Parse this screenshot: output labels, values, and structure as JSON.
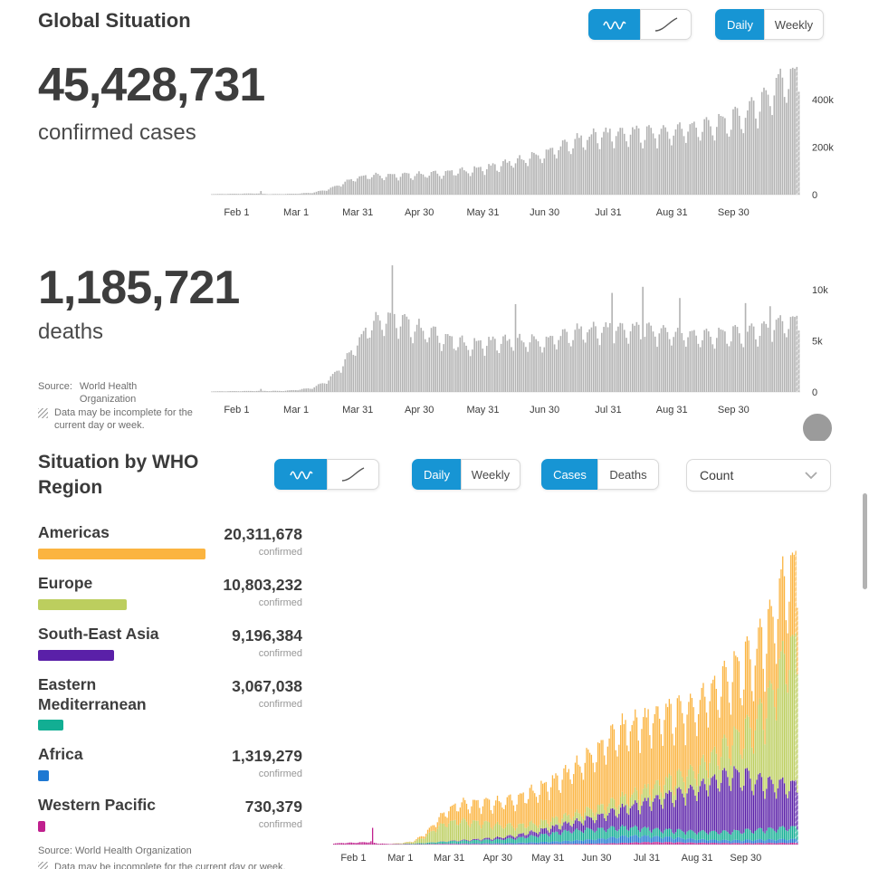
{
  "accent_blue": "#1795d4",
  "global": {
    "title": "Global Situation",
    "chart_type_toggle": {
      "options": [
        "daily-bars",
        "cumulative-curve"
      ],
      "active": "daily-bars"
    },
    "period_toggle": {
      "options": [
        "Daily",
        "Weekly"
      ],
      "active": "Daily"
    },
    "cases": {
      "value": "45,428,731",
      "label": "confirmed cases"
    },
    "deaths": {
      "value": "1,185,721",
      "label": "deaths"
    },
    "source_label": "Source:",
    "source_name": "World Health Organization",
    "disclaimer": "Data may be incomplete for the current day or week."
  },
  "regions_section": {
    "title": "Situation by WHO Region",
    "chart_type_toggle": {
      "options": [
        "daily-bars",
        "cumulative-curve"
      ],
      "active": "daily-bars"
    },
    "period_toggle": {
      "options": [
        "Daily",
        "Weekly"
      ],
      "active": "Daily"
    },
    "metric_toggle": {
      "options": [
        "Cases",
        "Deaths"
      ],
      "active": "Cases"
    },
    "dropdown_value": "Count",
    "unit_label": "confirmed",
    "source_line": "Source: World Health Organization",
    "disclaimer": "Data may be incomplete for the current day or week.",
    "regions": [
      {
        "name": "Americas",
        "value": "20,311,678",
        "count": 20311678,
        "color": "#fbb440"
      },
      {
        "name": "Europe",
        "value": "10,803,232",
        "count": 10803232,
        "color": "#bcce5e"
      },
      {
        "name": "South-East Asia",
        "value": "9,196,384",
        "count": 9196384,
        "color": "#5a20a8"
      },
      {
        "name": "Eastern Mediterranean",
        "value": "3,067,038",
        "count": 3067038,
        "color": "#12ae93"
      },
      {
        "name": "Africa",
        "value": "1,319,279",
        "count": 1319279,
        "color": "#1e78d2"
      },
      {
        "name": "Western Pacific",
        "value": "730,379",
        "count": 730379,
        "color": "#c0208e"
      }
    ]
  },
  "chart_data": [
    {
      "type": "bar",
      "name": "global-daily-confirmed-cases",
      "bar_color": "#b3b3b3",
      "ylim": [
        0,
        560000
      ],
      "y_ticks": [
        {
          "label": "0",
          "value": 0
        },
        {
          "label": "200k",
          "value": 200000
        },
        {
          "label": "400k",
          "value": 400000
        }
      ],
      "x_ticks": [
        {
          "label": "Feb 1",
          "day": 12
        },
        {
          "label": "Mar 1",
          "day": 41
        },
        {
          "label": "Mar 31",
          "day": 71
        },
        {
          "label": "Apr 30",
          "day": 101
        },
        {
          "label": "May 31",
          "day": 132
        },
        {
          "label": "Jun 30",
          "day": 162
        },
        {
          "label": "Jul 31",
          "day": 193
        },
        {
          "label": "Aug 31",
          "day": 224
        },
        {
          "label": "Sep 30",
          "day": 254
        }
      ],
      "weekly_avg": [
        2000,
        3000,
        3500,
        5000,
        2000,
        2500,
        4000,
        8000,
        20000,
        45000,
        70000,
        80000,
        80000,
        78000,
        82000,
        85000,
        88000,
        95000,
        100000,
        110000,
        120000,
        135000,
        150000,
        165000,
        190000,
        210000,
        230000,
        250000,
        250000,
        255000,
        250000,
        255000,
        260000,
        270000,
        280000,
        290000,
        300000,
        330000,
        370000,
        430000,
        490000
      ],
      "spikes": {
        "24": 15000
      },
      "week_pattern": [
        0.8,
        0.95,
        1.1,
        1.12,
        1.1,
        1.05,
        0.88
      ],
      "incomplete_days": 2
    },
    {
      "type": "bar",
      "name": "global-daily-deaths",
      "bar_color": "#b3b3b3",
      "ylim": [
        0,
        12500
      ],
      "y_ticks": [
        {
          "label": "0",
          "value": 0
        },
        {
          "label": "5k",
          "value": 5000
        },
        {
          "label": "10k",
          "value": 10000
        }
      ],
      "x_ticks": [
        {
          "label": "Feb 1",
          "day": 12
        },
        {
          "label": "Mar 1",
          "day": 41
        },
        {
          "label": "Mar 31",
          "day": 71
        },
        {
          "label": "Apr 30",
          "day": 101
        },
        {
          "label": "May 31",
          "day": 132
        },
        {
          "label": "Jun 30",
          "day": 162
        },
        {
          "label": "Jul 31",
          "day": 193
        },
        {
          "label": "Aug 31",
          "day": 224
        },
        {
          "label": "Sep 30",
          "day": 254
        }
      ],
      "weekly_avg": [
        50,
        70,
        80,
        100,
        100,
        100,
        200,
        400,
        1000,
        2500,
        4500,
        6500,
        7200,
        6800,
        6300,
        5800,
        5300,
        4800,
        4500,
        4700,
        4800,
        4800,
        4900,
        4800,
        5200,
        5500,
        5900,
        6000,
        6100,
        6000,
        5900,
        5800,
        5700,
        5500,
        5400,
        5400,
        5500,
        5600,
        5900,
        6300,
        6800
      ],
      "spikes": {
        "24": 300,
        "88": 12400,
        "148": 8600,
        "195": 9700,
        "210": 10300,
        "228": 9200,
        "260": 8700,
        "272": 8400
      },
      "week_pattern": [
        0.8,
        0.95,
        1.1,
        1.12,
        1.1,
        1.05,
        0.88
      ],
      "incomplete_days": 2
    },
    {
      "type": "stacked-bar",
      "name": "daily-confirmed-cases-by-who-region",
      "ylim": [
        0,
        560000
      ],
      "x_ticks": [
        {
          "label": "Feb 1",
          "day": 12
        },
        {
          "label": "Mar 1",
          "day": 41
        },
        {
          "label": "Mar 31",
          "day": 71
        },
        {
          "label": "Apr 30",
          "day": 101
        },
        {
          "label": "May 31",
          "day": 132
        },
        {
          "label": "Jun 30",
          "day": 162
        },
        {
          "label": "Jul 31",
          "day": 193
        },
        {
          "label": "Aug 31",
          "day": 224
        },
        {
          "label": "Sep 30",
          "day": 254
        }
      ],
      "week_pattern": [
        0.8,
        0.95,
        1.1,
        1.12,
        1.1,
        1.05,
        0.88
      ],
      "incomplete_days": 2,
      "series": [
        {
          "name": "Western Pacific",
          "color": "#c0208e",
          "weekly_avg": [
            2000,
            3000,
            3400,
            4500,
            1800,
            1000,
            800,
            700,
            700,
            1000,
            1200,
            1200,
            1100,
            1000,
            900,
            800,
            800,
            900,
            1000,
            1100,
            1200,
            1300,
            1400,
            1600,
            2000,
            2500,
            3200,
            4000,
            4500,
            4300,
            4000,
            3600,
            3200,
            3000,
            2800,
            2600,
            2500,
            2600,
            2700,
            2800,
            3000
          ],
          "spikes": {
            "23": 6000,
            "24": 30000
          }
        },
        {
          "name": "Africa",
          "color": "#1e78d2",
          "weekly_avg": [
            0,
            0,
            0,
            0,
            0,
            0,
            20,
            50,
            100,
            300,
            500,
            800,
            1000,
            1200,
            1500,
            1800,
            2200,
            2600,
            3000,
            3700,
            4500,
            5500,
            6500,
            7500,
            9000,
            11000,
            12000,
            11500,
            10000,
            9000,
            8000,
            7000,
            6000,
            5500,
            5000,
            5000,
            5000,
            5500,
            6000,
            6000,
            6500
          ]
        },
        {
          "name": "Eastern Mediterranean",
          "color": "#12ae93",
          "weekly_avg": [
            0,
            0,
            0,
            0,
            0,
            100,
            500,
            1000,
            2000,
            3000,
            4000,
            4500,
            5000,
            5500,
            6000,
            7000,
            8000,
            10000,
            12000,
            14000,
            16000,
            17000,
            18000,
            18000,
            17000,
            16000,
            15000,
            14000,
            13000,
            12500,
            12500,
            13000,
            13500,
            14000,
            14500,
            15000,
            16000,
            17000,
            18000,
            19000,
            21000
          ]
        },
        {
          "name": "South-East Asia",
          "color": "#5a20a8",
          "weekly_avg": [
            0,
            0,
            0,
            0,
            0,
            0,
            50,
            100,
            100,
            200,
            500,
            1000,
            1500,
            2000,
            3000,
            4000,
            5000,
            6500,
            8000,
            10000,
            12000,
            14500,
            17000,
            21000,
            25000,
            30000,
            35000,
            42000,
            50000,
            56000,
            62000,
            68000,
            75000,
            85000,
            95000,
            100000,
            95000,
            88000,
            82000,
            78000,
            75000
          ]
        },
        {
          "name": "Europe",
          "color": "#bcce5e",
          "weekly_avg": [
            0,
            0,
            0,
            0,
            0,
            200,
            1000,
            3000,
            10000,
            25000,
            33000,
            35000,
            32000,
            28000,
            24000,
            20000,
            17000,
            15000,
            14000,
            13000,
            13000,
            13000,
            14000,
            15000,
            16000,
            17000,
            19000,
            21000,
            23000,
            25000,
            27000,
            30000,
            34000,
            40000,
            48000,
            58000,
            70000,
            95000,
            130000,
            180000,
            240000
          ]
        },
        {
          "name": "Americas",
          "color": "#fbb440",
          "weekly_avg": [
            0,
            0,
            0,
            0,
            0,
            100,
            300,
            1000,
            5000,
            12000,
            22000,
            30000,
            33000,
            34000,
            38000,
            42000,
            46000,
            52000,
            58000,
            64000,
            70000,
            78000,
            88000,
            98000,
            110000,
            118000,
            120000,
            122000,
            120000,
            118000,
            115000,
            112000,
            112000,
            113000,
            115000,
            116000,
            118000,
            120000,
            125000,
            130000,
            135000
          ]
        }
      ]
    }
  ]
}
